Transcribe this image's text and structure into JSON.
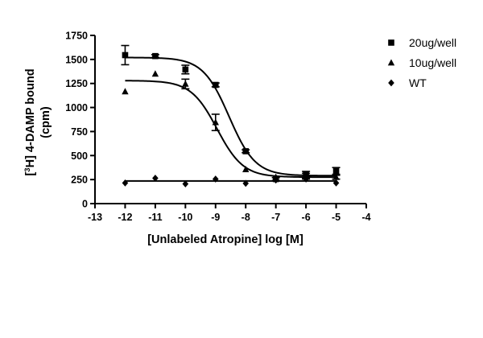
{
  "chart_data": {
    "type": "scatter",
    "xlabel": "[Unlabeled Atropine] log [M]",
    "ylabel": {
      "prefix": "[",
      "sup": "3",
      "rest": "H] 4-DAMP bound",
      "line2": "(cpm)"
    },
    "xlim": [
      -13,
      -4
    ],
    "ylim": [
      0,
      1750
    ],
    "x_ticks": [
      -13,
      -12,
      -11,
      -10,
      -9,
      -8,
      -7,
      -6,
      -5,
      -4
    ],
    "y_ticks": [
      0,
      250,
      500,
      750,
      1000,
      1250,
      1500,
      1750
    ],
    "grid": false,
    "legend_position": "right",
    "series": [
      {
        "name": "20ug/well",
        "marker": "square",
        "color": "#000000",
        "x": [
          -12,
          -11,
          -10,
          -9,
          -8,
          -7,
          -6,
          -5
        ],
        "y": [
          1545,
          1535,
          1395,
          1235,
          545,
          255,
          300,
          340
        ],
        "error": [
          100,
          15,
          45,
          20,
          15,
          15,
          35,
          35
        ],
        "fit": {
          "top": 1520,
          "bottom": 290,
          "logEC50": -8.55
        }
      },
      {
        "name": "10ug/well",
        "marker": "triangle",
        "color": "#000000",
        "x": [
          -12,
          -11,
          -10,
          -9,
          -8,
          -7,
          -6,
          -5
        ],
        "y": [
          1165,
          1350,
          1245,
          845,
          355,
          275,
          285,
          275
        ],
        "error": [
          0,
          0,
          50,
          85,
          0,
          0,
          30,
          20
        ],
        "fit": {
          "top": 1280,
          "bottom": 275,
          "logEC50": -8.95
        }
      },
      {
        "name": "WT",
        "marker": "diamond",
        "color": "#000000",
        "x": [
          -12,
          -11,
          -10,
          -9,
          -8,
          -7,
          -6,
          -5
        ],
        "y": [
          215,
          265,
          205,
          255,
          210,
          245,
          255,
          215
        ],
        "error": [
          0,
          0,
          0,
          0,
          0,
          0,
          0,
          0
        ],
        "fit": {
          "top": 235,
          "bottom": 235,
          "logEC50": -12
        }
      }
    ]
  }
}
